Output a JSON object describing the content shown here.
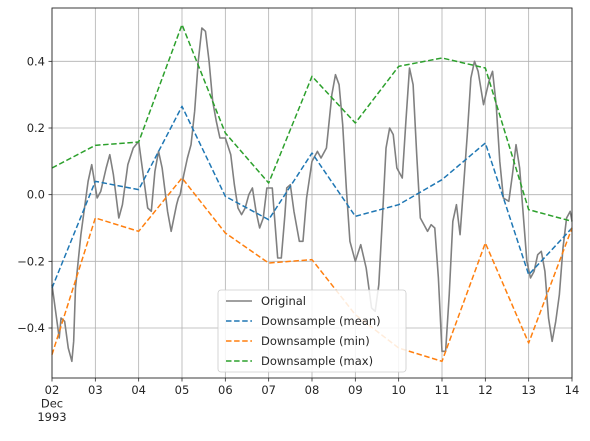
{
  "chart_data": {
    "type": "line",
    "title": "",
    "xlabel": "",
    "ylabel": "",
    "x_axis": {
      "type": "date",
      "range": [
        "1993-12-02",
        "1993-12-14"
      ],
      "ticks": [
        {
          "date": "1993-12-02",
          "lines": [
            "02",
            "Dec",
            "1993"
          ]
        },
        {
          "date": "1993-12-03",
          "lines": [
            "03"
          ]
        },
        {
          "date": "1993-12-04",
          "lines": [
            "04"
          ]
        },
        {
          "date": "1993-12-05",
          "lines": [
            "05"
          ]
        },
        {
          "date": "1993-12-06",
          "lines": [
            "06"
          ]
        },
        {
          "date": "1993-12-07",
          "lines": [
            "07"
          ]
        },
        {
          "date": "1993-12-08",
          "lines": [
            "08"
          ]
        },
        {
          "date": "1993-12-09",
          "lines": [
            "09"
          ]
        },
        {
          "date": "1993-12-10",
          "lines": [
            "10"
          ]
        },
        {
          "date": "1993-12-11",
          "lines": [
            "11"
          ]
        },
        {
          "date": "1993-12-12",
          "lines": [
            "12"
          ]
        },
        {
          "date": "1993-12-13",
          "lines": [
            "13"
          ]
        },
        {
          "date": "1993-12-14",
          "lines": [
            "14"
          ]
        }
      ]
    },
    "y_axis": {
      "range": [
        -0.55,
        0.56
      ],
      "ticks": [
        {
          "value": 0.4,
          "label": "0.4"
        },
        {
          "value": 0.2,
          "label": "0.2"
        },
        {
          "value": 0.0,
          "label": "0.0"
        },
        {
          "value": -0.2,
          "label": "−0.2"
        },
        {
          "value": -0.4,
          "label": "−0.4"
        }
      ]
    },
    "grid": true,
    "legend_position": "bottom-center",
    "series": [
      {
        "name": "Original",
        "color": "#808080",
        "dash": "solid",
        "points": [
          [
            "1993-12-02 00:00",
            -0.27
          ],
          [
            "1993-12-02 03:00",
            -0.39
          ],
          [
            "1993-12-02 04:00",
            -0.43
          ],
          [
            "1993-12-02 05:00",
            -0.37
          ],
          [
            "1993-12-02 07:00",
            -0.38
          ],
          [
            "1993-12-02 09:00",
            -0.46
          ],
          [
            "1993-12-02 11:00",
            -0.5
          ],
          [
            "1993-12-02 12:00",
            -0.44
          ],
          [
            "1993-12-02 13:00",
            -0.28
          ],
          [
            "1993-12-02 16:00",
            -0.12
          ],
          [
            "1993-12-02 20:00",
            0.04
          ],
          [
            "1993-12-02 22:00",
            0.09
          ],
          [
            "1993-12-03 01:00",
            -0.01
          ],
          [
            "1993-12-03 03:00",
            0.01
          ],
          [
            "1993-12-03 06:00",
            0.08
          ],
          [
            "1993-12-03 08:00",
            0.12
          ],
          [
            "1993-12-03 10:00",
            0.06
          ],
          [
            "1993-12-03 13:00",
            -0.07
          ],
          [
            "1993-12-03 15:00",
            -0.03
          ],
          [
            "1993-12-03 18:00",
            0.09
          ],
          [
            "1993-12-03 21:00",
            0.14
          ],
          [
            "1993-12-04 00:00",
            0.16
          ],
          [
            "1993-12-04 03:00",
            0.04
          ],
          [
            "1993-12-04 05:00",
            -0.04
          ],
          [
            "1993-12-04 07:00",
            -0.05
          ],
          [
            "1993-12-04 09:00",
            0.07
          ],
          [
            "1993-12-04 11:00",
            0.13
          ],
          [
            "1993-12-04 13:00",
            0.08
          ],
          [
            "1993-12-04 16:00",
            -0.05
          ],
          [
            "1993-12-04 18:00",
            -0.11
          ],
          [
            "1993-12-04 21:00",
            -0.03
          ],
          [
            "1993-12-04 22:00",
            -0.01
          ],
          [
            "1993-12-04 23:00",
            0.0
          ],
          [
            "1993-12-05 01:00",
            0.06
          ],
          [
            "1993-12-05 03:00",
            0.11
          ],
          [
            "1993-12-05 05:00",
            0.15
          ],
          [
            "1993-12-05 07:00",
            0.25
          ],
          [
            "1993-12-05 09:00",
            0.4
          ],
          [
            "1993-12-05 11:00",
            0.5
          ],
          [
            "1993-12-05 13:00",
            0.49
          ],
          [
            "1993-12-05 15:00",
            0.4
          ],
          [
            "1993-12-05 17:00",
            0.28
          ],
          [
            "1993-12-05 19:00",
            0.22
          ],
          [
            "1993-12-05 21:00",
            0.17
          ],
          [
            "1993-12-06 00:00",
            0.17
          ],
          [
            "1993-12-06 03:00",
            0.12
          ],
          [
            "1993-12-06 05:00",
            0.03
          ],
          [
            "1993-12-06 07:00",
            -0.04
          ],
          [
            "1993-12-06 09:00",
            -0.06
          ],
          [
            "1993-12-06 11:00",
            -0.04
          ],
          [
            "1993-12-06 13:00",
            0.0
          ],
          [
            "1993-12-06 15:00",
            0.02
          ],
          [
            "1993-12-06 17:00",
            -0.05
          ],
          [
            "1993-12-06 19:00",
            -0.1
          ],
          [
            "1993-12-06 21:00",
            -0.07
          ],
          [
            "1993-12-06 23:00",
            0.02
          ],
          [
            "1993-12-07 02:00",
            0.02
          ],
          [
            "1993-12-07 03:00",
            -0.05
          ],
          [
            "1993-12-07 05:00",
            -0.19
          ],
          [
            "1993-12-07 07:00",
            -0.19
          ],
          [
            "1993-12-07 09:00",
            -0.06
          ],
          [
            "1993-12-07 10:00",
            0.02
          ],
          [
            "1993-12-07 12:00",
            0.03
          ],
          [
            "1993-12-07 14:00",
            -0.05
          ],
          [
            "1993-12-07 17:00",
            -0.14
          ],
          [
            "1993-12-07 19:00",
            -0.14
          ],
          [
            "1993-12-07 21:00",
            -0.01
          ],
          [
            "1993-12-08 00:00",
            0.1
          ],
          [
            "1993-12-08 03:00",
            0.13
          ],
          [
            "1993-12-08 05:00",
            0.11
          ],
          [
            "1993-12-08 08:00",
            0.14
          ],
          [
            "1993-12-08 11:00",
            0.3
          ],
          [
            "1993-12-08 13:00",
            0.36
          ],
          [
            "1993-12-08 15:00",
            0.33
          ],
          [
            "1993-12-08 17:00",
            0.21
          ],
          [
            "1993-12-08 19:00",
            0.02
          ],
          [
            "1993-12-08 21:00",
            -0.14
          ],
          [
            "1993-12-09 00:00",
            -0.2
          ],
          [
            "1993-12-09 03:00",
            -0.15
          ],
          [
            "1993-12-09 06:00",
            -0.22
          ],
          [
            "1993-12-09 09:00",
            -0.34
          ],
          [
            "1993-12-09 11:00",
            -0.35
          ],
          [
            "1993-12-09 13:00",
            -0.27
          ],
          [
            "1993-12-09 15:00",
            -0.07
          ],
          [
            "1993-12-09 17:00",
            0.14
          ],
          [
            "1993-12-09 19:00",
            0.2
          ],
          [
            "1993-12-09 21:00",
            0.18
          ],
          [
            "1993-12-09 23:00",
            0.08
          ],
          [
            "1993-12-10 02:00",
            0.05
          ],
          [
            "1993-12-10 04:00",
            0.22
          ],
          [
            "1993-12-10 06:00",
            0.38
          ],
          [
            "1993-12-10 08:00",
            0.33
          ],
          [
            "1993-12-10 10:00",
            0.12
          ],
          [
            "1993-12-10 12:00",
            -0.07
          ],
          [
            "1993-12-10 14:00",
            -0.09
          ],
          [
            "1993-12-10 16:00",
            -0.11
          ],
          [
            "1993-12-10 18:00",
            -0.09
          ],
          [
            "1993-12-10 20:00",
            -0.1
          ],
          [
            "1993-12-10 22:00",
            -0.25
          ],
          [
            "1993-12-11 00:00",
            -0.47
          ],
          [
            "1993-12-11 02:00",
            -0.47
          ],
          [
            "1993-12-11 04:00",
            -0.3
          ],
          [
            "1993-12-11 06:00",
            -0.08
          ],
          [
            "1993-12-11 08:00",
            -0.03
          ],
          [
            "1993-12-11 10:00",
            -0.12
          ],
          [
            "1993-12-11 12:00",
            0.03
          ],
          [
            "1993-12-11 14:00",
            0.18
          ],
          [
            "1993-12-11 16:00",
            0.35
          ],
          [
            "1993-12-11 18:00",
            0.4
          ],
          [
            "1993-12-11 20:00",
            0.37
          ],
          [
            "1993-12-11 23:00",
            0.27
          ],
          [
            "1993-12-12 02:00",
            0.34
          ],
          [
            "1993-12-12 04:00",
            0.37
          ],
          [
            "1993-12-12 06:00",
            0.27
          ],
          [
            "1993-12-12 08:00",
            0.1
          ],
          [
            "1993-12-12 10:00",
            -0.01
          ],
          [
            "1993-12-12 13:00",
            -0.02
          ],
          [
            "1993-12-12 15:00",
            0.06
          ],
          [
            "1993-12-12 17:00",
            0.15
          ],
          [
            "1993-12-12 19:00",
            0.08
          ],
          [
            "1993-12-12 21:00",
            -0.06
          ],
          [
            "1993-12-12 23:00",
            -0.2
          ],
          [
            "1993-12-13 01:00",
            -0.25
          ],
          [
            "1993-12-13 03:00",
            -0.23
          ],
          [
            "1993-12-13 05:00",
            -0.18
          ],
          [
            "1993-12-13 07:00",
            -0.17
          ],
          [
            "1993-12-13 09:00",
            -0.23
          ],
          [
            "1993-12-13 11:00",
            -0.37
          ],
          [
            "1993-12-13 13:00",
            -0.44
          ],
          [
            "1993-12-13 15:00",
            -0.38
          ],
          [
            "1993-12-13 17:00",
            -0.3
          ],
          [
            "1993-12-13 19:00",
            -0.16
          ],
          [
            "1993-12-13 21:00",
            -0.07
          ],
          [
            "1993-12-13 23:00",
            -0.05
          ],
          [
            "1993-12-14 00:00",
            -0.08
          ]
        ]
      },
      {
        "name": "Downsample (mean)",
        "color": "#1f77b4",
        "dash": "dashed",
        "points": [
          [
            "1993-12-02",
            -0.28
          ],
          [
            "1993-12-03",
            0.04
          ],
          [
            "1993-12-04",
            0.015
          ],
          [
            "1993-12-05",
            0.265
          ],
          [
            "1993-12-06",
            -0.005
          ],
          [
            "1993-12-07",
            -0.075
          ],
          [
            "1993-12-08",
            0.125
          ],
          [
            "1993-12-09",
            -0.065
          ],
          [
            "1993-12-10",
            -0.03
          ],
          [
            "1993-12-11",
            0.045
          ],
          [
            "1993-12-12",
            0.155
          ],
          [
            "1993-12-13",
            -0.24
          ],
          [
            "1993-12-14",
            -0.1
          ]
        ]
      },
      {
        "name": "Downsample (min)",
        "color": "#ff7f0e",
        "dash": "dashed",
        "points": [
          [
            "1993-12-02",
            -0.48
          ],
          [
            "1993-12-03",
            -0.07
          ],
          [
            "1993-12-04",
            -0.11
          ],
          [
            "1993-12-05",
            0.05
          ],
          [
            "1993-12-06",
            -0.115
          ],
          [
            "1993-12-07",
            -0.205
          ],
          [
            "1993-12-08",
            -0.195
          ],
          [
            "1993-12-09",
            -0.36
          ],
          [
            "1993-12-10",
            -0.46
          ],
          [
            "1993-12-11",
            -0.5
          ],
          [
            "1993-12-12",
            -0.145
          ],
          [
            "1993-12-13",
            -0.445
          ],
          [
            "1993-12-14",
            -0.1
          ]
        ]
      },
      {
        "name": "Downsample (max)",
        "color": "#2ca02c",
        "dash": "dashed",
        "points": [
          [
            "1993-12-02",
            0.08
          ],
          [
            "1993-12-03",
            0.148
          ],
          [
            "1993-12-04",
            0.158
          ],
          [
            "1993-12-05",
            0.51
          ],
          [
            "1993-12-06",
            0.185
          ],
          [
            "1993-12-07",
            0.035
          ],
          [
            "1993-12-08",
            0.355
          ],
          [
            "1993-12-09",
            0.215
          ],
          [
            "1993-12-10",
            0.385
          ],
          [
            "1993-12-11",
            0.41
          ],
          [
            "1993-12-12",
            0.38
          ],
          [
            "1993-12-13",
            -0.045
          ],
          [
            "1993-12-14",
            -0.08
          ]
        ]
      }
    ]
  }
}
